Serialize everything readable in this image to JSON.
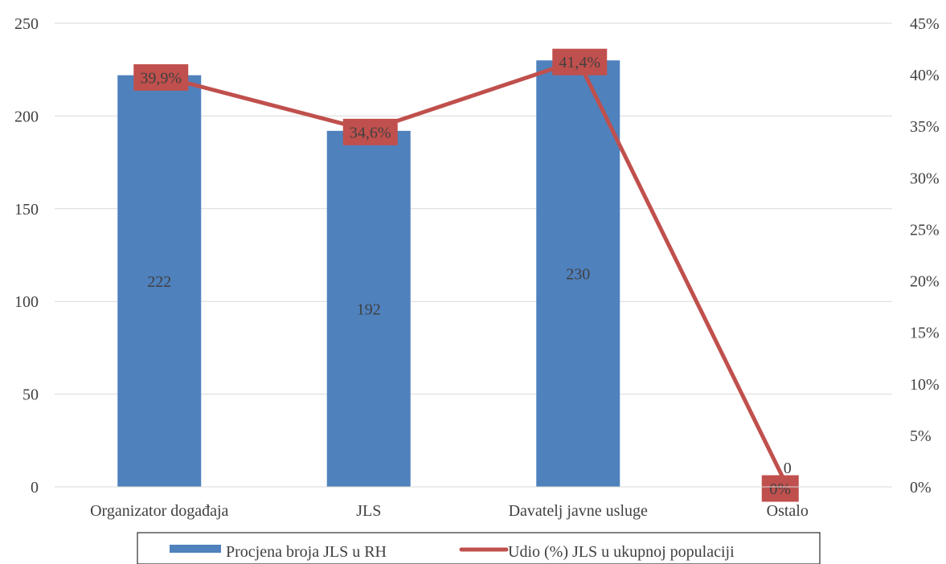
{
  "chart_data": {
    "type": "bar",
    "categories": [
      "Organizator događaja",
      "JLS",
      "Davatelj javne usluge",
      "Ostalo"
    ],
    "series": [
      {
        "name": "Procjena broja JLS u RH",
        "type": "bar",
        "axis": "left",
        "values": [
          222,
          192,
          230,
          0
        ],
        "labels": [
          "222",
          "192",
          "230",
          "0"
        ],
        "color": "#4F81BD"
      },
      {
        "name": "Udio (%) JLS  u ukupnoj populaciji",
        "type": "line",
        "axis": "right",
        "values": [
          39.9,
          34.6,
          41.4,
          0
        ],
        "labels": [
          "39,9%",
          "34,6%",
          "41,4%",
          "0%"
        ],
        "color": "#C0504D"
      }
    ],
    "y_left": {
      "ylim": [
        0,
        250
      ],
      "ticks": [
        0,
        50,
        100,
        150,
        200,
        250
      ],
      "tick_labels": [
        "0",
        "50",
        "100",
        "150",
        "200",
        "250"
      ]
    },
    "y_right": {
      "ylim": [
        0,
        45
      ],
      "ticks": [
        0,
        5,
        10,
        15,
        20,
        25,
        30,
        35,
        40,
        45
      ],
      "tick_labels": [
        "0%",
        "5%",
        "10%",
        "15%",
        "20%",
        "25%",
        "30%",
        "35%",
        "40%",
        "45%"
      ]
    },
    "grid": true,
    "legend_position": "bottom",
    "title": "",
    "xlabel": "",
    "ylabel": ""
  }
}
